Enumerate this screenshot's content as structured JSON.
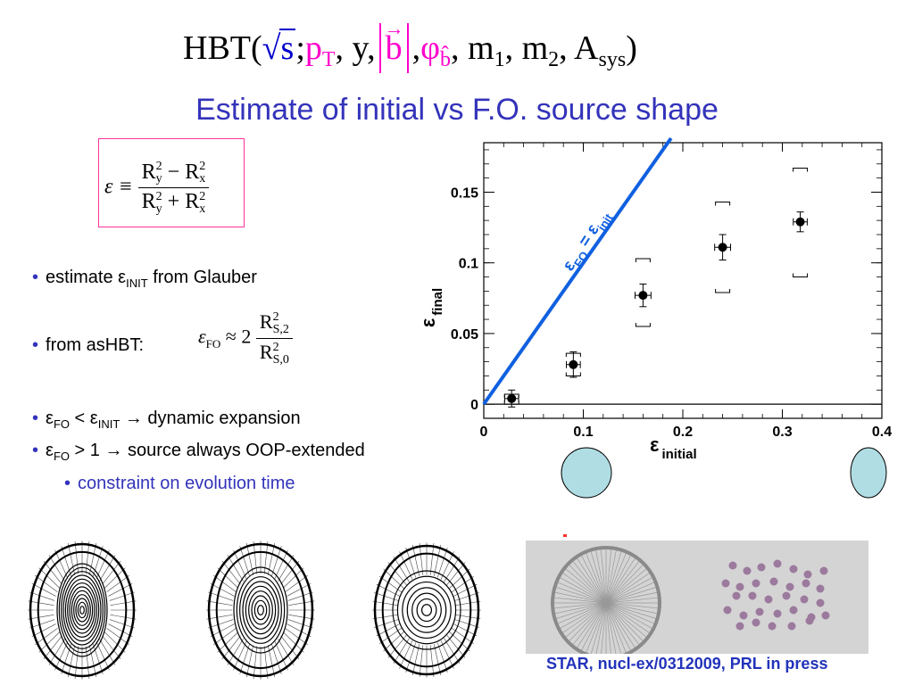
{
  "header": {
    "hbt_open": "HBT(",
    "sqrt_s": "s",
    "semi": ";",
    "p": "p",
    "p_sub": "T",
    "y_part": ", y,",
    "b": "b",
    "comma1": ",",
    "phi": "φ",
    "phi_sub": "b̂",
    "m1": ", m",
    "m1_sub": "1",
    "m2": ", m",
    "m2_sub": "2",
    "a": ", A",
    "a_sub": "sys",
    "close": ")"
  },
  "title": "Estimate of initial vs F.O. source shape",
  "definition": {
    "lhs": "ε ≡",
    "num_a": "R",
    "num_a_sup": "2",
    "num_a_sub": "y",
    "num_op": " − R",
    "num_b_sup": "2",
    "num_b_sub": "x",
    "den_a": "R",
    "den_a_sup": "2",
    "den_a_sub": "y",
    "den_op": " + R",
    "den_b_sup": "2",
    "den_b_sub": "x"
  },
  "bullets": {
    "b1_pre": "estimate ε",
    "b1_sub": "INIT",
    "b1_post": " from Glauber",
    "b2": "from asHBT:",
    "b3_a": "ε",
    "b3_a_sub": "FO",
    "b3_mid": " < ε",
    "b3_b_sub": "INIT",
    "b3_post": " → dynamic expansion",
    "b4_a": "ε",
    "b4_a_sub": "FO",
    "b4_post": " > 1 → source always OOP-extended",
    "b5": "constraint on evolution time",
    "dot": "•"
  },
  "fo_formula": {
    "lhs": "ε",
    "lhs_sub": "FO",
    "approx": " ≈ 2",
    "num": "R",
    "num_sup": "2",
    "num_sub": "S,2",
    "den": "R",
    "den_sup": "2",
    "den_sub": "S,0"
  },
  "citation": "STAR, nucl-ex/0312009, PRL in press",
  "colors": {
    "title": "#3333bb",
    "diag_line": "#1060e0",
    "ellipse_fill": "#b0dde4",
    "formula_blue": "#0000cc",
    "formula_magenta": "#ff00cc",
    "box_border": "#ff3399"
  },
  "chart_data": {
    "type": "scatter",
    "xlabel": "ε",
    "xlabel_sub": "initial",
    "ylabel": "ε",
    "ylabel_sub": "final",
    "xlim": [
      0,
      0.4
    ],
    "ylim": [
      -0.01,
      0.185
    ],
    "x_ticks": [
      0,
      0.1,
      0.2,
      0.3,
      0.4
    ],
    "x_tick_labels": [
      "0",
      "0.1",
      "0.2",
      "0.3",
      "0.4"
    ],
    "y_ticks": [
      0,
      0.05,
      0.1,
      0.15
    ],
    "y_tick_labels": [
      "0",
      "0.05",
      "0.1",
      "0.15"
    ],
    "grid": false,
    "points": [
      {
        "x": 0.028,
        "y": 0.004,
        "xerr": 0.007,
        "yerr": 0.006,
        "sys_low": 0.0,
        "sys_high": 0.007
      },
      {
        "x": 0.09,
        "y": 0.028,
        "xerr": 0.007,
        "yerr": 0.009,
        "sys_low": 0.02,
        "sys_high": 0.036
      },
      {
        "x": 0.16,
        "y": 0.077,
        "xerr": 0.008,
        "yerr": 0.008,
        "sys_low": 0.055,
        "sys_high": 0.103
      },
      {
        "x": 0.24,
        "y": 0.111,
        "xerr": 0.008,
        "yerr": 0.009,
        "sys_low": 0.079,
        "sys_high": 0.143
      },
      {
        "x": 0.318,
        "y": 0.129,
        "xerr": 0.007,
        "yerr": 0.007,
        "sys_low": 0.09,
        "sys_high": 0.167
      }
    ],
    "reference_line": {
      "label": "ε",
      "label_sub1": "FO",
      "label_eq": " = ε",
      "label_sub2": "init",
      "slope": 1
    },
    "zero_line": 0
  }
}
